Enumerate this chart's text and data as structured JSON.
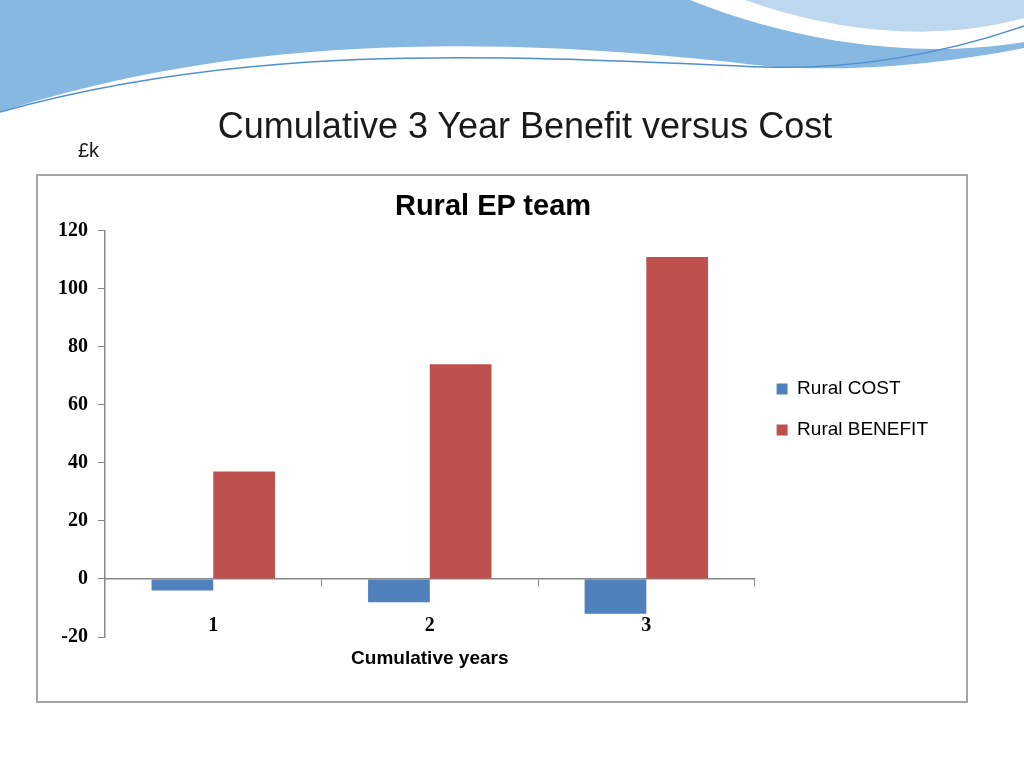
{
  "chart_data": {
    "type": "bar",
    "title": "Cumulative 3 Year Benefit versus Cost",
    "subtitle": "Rural EP team",
    "xlabel": "Cumulative years",
    "ylabel": "£k",
    "categories": [
      "1",
      "2",
      "3"
    ],
    "series": [
      {
        "name": "Rural COST",
        "color": "#4f81bd",
        "values": [
          -4,
          -8,
          -12
        ]
      },
      {
        "name": "Rural BENEFIT",
        "color": "#c0504d",
        "values": [
          37,
          74,
          111
        ]
      }
    ],
    "ylim": [
      -20,
      120
    ],
    "yticks": [
      -20,
      0,
      20,
      40,
      60,
      80,
      100,
      120
    ],
    "grid": false,
    "legend": "right"
  }
}
